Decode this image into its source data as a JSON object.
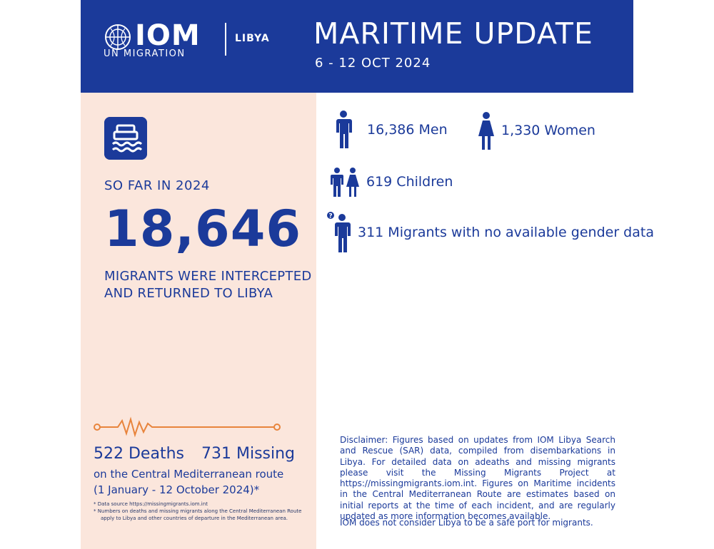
{
  "header": {
    "org": "IOM",
    "org_sub": "UN MIGRATION",
    "country": "LIBYA",
    "title": "MARITIME UPDATE",
    "dates": "6 - 12 OCT 2024"
  },
  "left": {
    "icon": "boat-waves-icon",
    "so_far": "SO FAR IN 2024",
    "total": "18,646",
    "caption": "MIGRANTS WERE INTERCEPTED AND RETURNED TO LIBYA",
    "deaths": "522 Deaths",
    "missing": "731 Missing",
    "route": "on the Central Mediterranean route",
    "period": "(1 January - 12 October 2024)*",
    "footnote_1": "*    Data source https://missingmigrants.iom.int",
    "footnote_2": "*    Numbers on deaths and missing migrants along the Central Mediterranean Route apply to Libya and other countries of departure in the Mediterranean area."
  },
  "right": {
    "men": "16,386 Men",
    "women": "1,330 Women",
    "children": "619 Children",
    "unknown": "311 Migrants with no available gender data",
    "disclaimer": "Disclaimer: Figures based on updates from IOM Libya Search and Rescue (SAR) data, compiled from disembarkations in Libya. For detailed data on adeaths and missing migrants please visit the Missing Migrants Project at https://missingmigrants.iom.int. Figures on Maritime incidents in the Central Mediterranean Route are estimates based on initial reports at the time of each incident, and are regularly updated as more information becomes available.",
    "disclaimer_last": "IOM does not consider Libya to be a safe port for migrants."
  },
  "colors": {
    "brand_blue": "#1b3a9a",
    "panel_peach": "#fbe6dc",
    "accent_orange": "#e8843c"
  }
}
